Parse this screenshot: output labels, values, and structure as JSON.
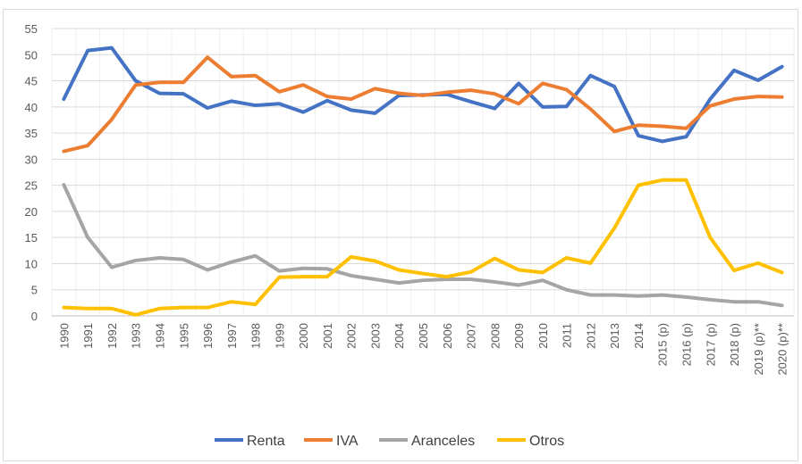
{
  "chart_data": {
    "type": "line",
    "categories": [
      "1990",
      "1991",
      "1992",
      "1993",
      "1994",
      "1995",
      "1996",
      "1997",
      "1998",
      "1999",
      "2000",
      "2001",
      "2002",
      "2003",
      "2004",
      "2005",
      "2006",
      "2007",
      "2008",
      "2009",
      "2010",
      "2011",
      "2012",
      "2013",
      "2014",
      "2015 (p)",
      "2016 (p)",
      "2017 (p)",
      "2018 (p)",
      "2019 (p)**",
      "2020 (p)**"
    ],
    "series": [
      {
        "name": "Renta",
        "color": "#4472c4",
        "values": [
          41.5,
          50.8,
          51.3,
          45,
          42.6,
          42.5,
          39.8,
          41.1,
          40.3,
          40.6,
          39,
          41.2,
          39.4,
          38.8,
          42.2,
          42.3,
          42.4,
          41,
          39.7,
          44.5,
          40,
          40.1,
          46,
          43.9,
          34.5,
          33.4,
          34.3,
          41.5,
          47,
          45.1,
          47.7
        ]
      },
      {
        "name": "IVA",
        "color": "#ed7d31",
        "values": [
          31.5,
          32.6,
          37.6,
          44.2,
          44.7,
          44.7,
          49.5,
          45.8,
          46,
          42.9,
          44.2,
          42,
          41.5,
          43.5,
          42.6,
          42.2,
          42.8,
          43.2,
          42.5,
          40.6,
          44.5,
          43.3,
          39.6,
          35.3,
          36.5,
          36.3,
          35.9,
          40.2,
          41.5,
          42,
          41.9
        ]
      },
      {
        "name": "Aranceles",
        "color": "#a5a5a5",
        "values": [
          25.1,
          15,
          9.3,
          10.6,
          11.1,
          10.8,
          8.8,
          10.3,
          11.5,
          8.6,
          9.1,
          9,
          7.7,
          7,
          6.3,
          6.8,
          7,
          7,
          6.5,
          5.9,
          6.8,
          5,
          4,
          4,
          3.8,
          4,
          3.6,
          3.1,
          2.7,
          2.7,
          2
        ]
      },
      {
        "name": "Otros",
        "color": "#ffc000",
        "values": [
          1.6,
          1.4,
          1.4,
          0.2,
          1.4,
          1.6,
          1.6,
          2.7,
          2.2,
          7.4,
          7.5,
          7.5,
          11.3,
          10.5,
          8.8,
          8.1,
          7.5,
          8.4,
          11,
          8.8,
          8.3,
          11.1,
          10.1,
          16.8,
          25,
          26,
          26,
          15,
          8.7,
          10.1,
          8.3
        ]
      }
    ],
    "ylim": [
      0,
      55
    ],
    "yticks": [
      0,
      5,
      10,
      15,
      20,
      25,
      30,
      35,
      40,
      45,
      50,
      55
    ],
    "grid": true,
    "legend": "bottom"
  }
}
